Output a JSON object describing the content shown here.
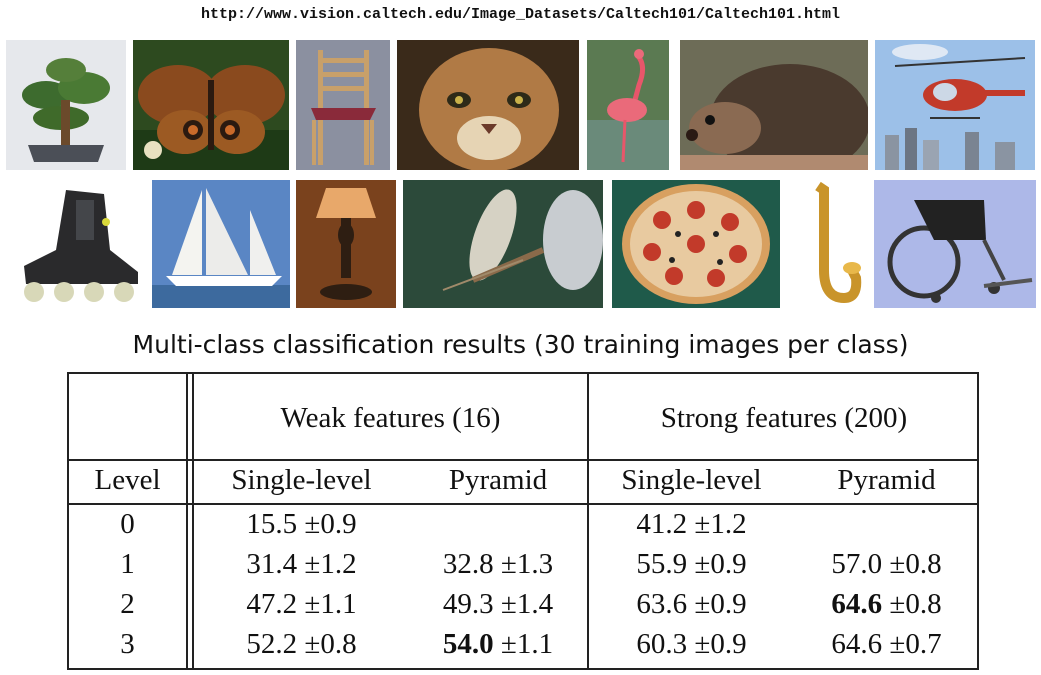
{
  "url_text": "http://www.vision.caltech.edu/Image_Datasets/Caltech101/Caltech101.html",
  "images": [
    "bonsai",
    "butterfly",
    "chair",
    "cougar face",
    "flamingo",
    "hedgehog",
    "helicopter",
    "inline skate",
    "ketch",
    "lamp",
    "mayfly",
    "pizza",
    "saxophone",
    "wheelchair"
  ],
  "caption": "Multi-class classification results (30 training images per class)",
  "table": {
    "group_headers": [
      "Weak features (16)",
      "Strong features (200)"
    ],
    "column_headers": [
      "Level",
      "Single-level",
      "Pyramid",
      "Single-level",
      "Pyramid"
    ],
    "rows": [
      {
        "level": "0",
        "weak_single": {
          "v": "15.5",
          "e": "±0.9"
        },
        "weak_pyr": {
          "v": "",
          "e": ""
        },
        "strong_single": {
          "v": "41.2",
          "e": "±1.2"
        },
        "strong_pyr": {
          "v": "",
          "e": ""
        }
      },
      {
        "level": "1",
        "weak_single": {
          "v": "31.4",
          "e": "±1.2"
        },
        "weak_pyr": {
          "v": "32.8",
          "e": "±1.3"
        },
        "strong_single": {
          "v": "55.9",
          "e": "±0.9"
        },
        "strong_pyr": {
          "v": "57.0",
          "e": "±0.8"
        }
      },
      {
        "level": "2",
        "weak_single": {
          "v": "47.2",
          "e": "±1.1"
        },
        "weak_pyr": {
          "v": "49.3",
          "e": "±1.4"
        },
        "strong_single": {
          "v": "63.6",
          "e": "±0.9"
        },
        "strong_pyr": {
          "v": "64.6",
          "e": "±0.8"
        }
      },
      {
        "level": "3",
        "weak_single": {
          "v": "52.2",
          "e": "±0.8"
        },
        "weak_pyr": {
          "v": "54.0",
          "e": "±1.1"
        },
        "strong_single": {
          "v": "60.3",
          "e": "±0.9"
        },
        "strong_pyr": {
          "v": "64.6",
          "e": "±0.7"
        }
      }
    ]
  }
}
